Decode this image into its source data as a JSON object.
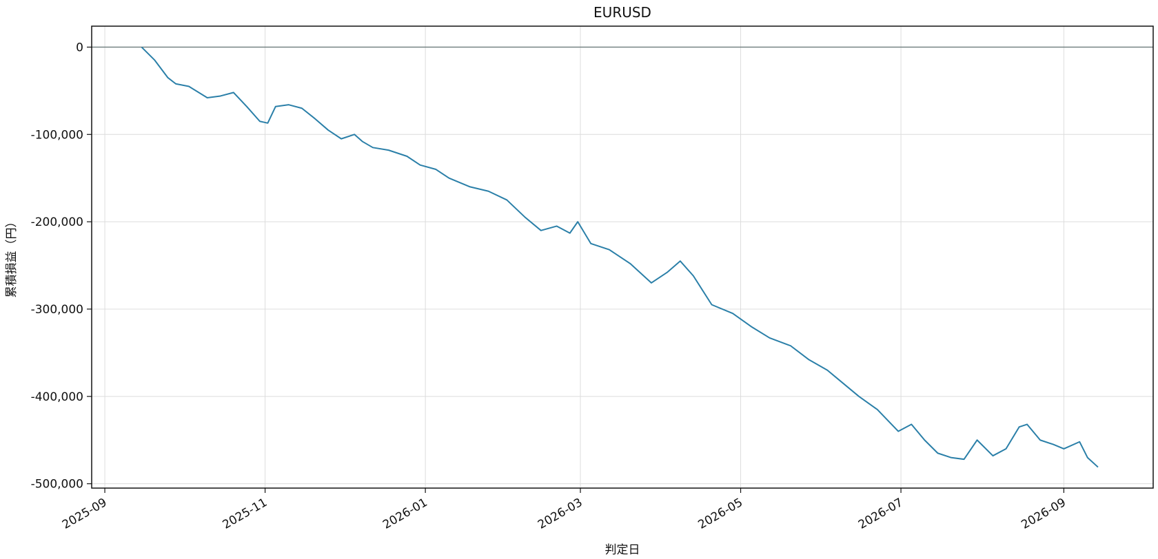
{
  "chart_data": {
    "type": "line",
    "title": "EURUSD",
    "xlabel": "判定日",
    "ylabel": "累積損益（円）",
    "ylim": [
      -505000,
      24000
    ],
    "xlim": [
      "2025-08-27",
      "2026-10-05"
    ],
    "grid": true,
    "legend": "none",
    "zero_line": true,
    "color": "#2a7fa8",
    "x_ticks": [
      "2025-09-01",
      "2025-11-01",
      "2026-01-01",
      "2026-03-01",
      "2026-05-01",
      "2026-07-01",
      "2026-09-01"
    ],
    "x_tick_labels": [
      "2025-09",
      "2025-11",
      "2026-01",
      "2026-03",
      "2026-05",
      "2026-07",
      "2026-09"
    ],
    "y_ticks": [
      0,
      -100000,
      -200000,
      -300000,
      -400000,
      -500000
    ],
    "y_tick_labels": [
      "0",
      "-100,000",
      "-200,000",
      "-300,000",
      "-400,000",
      "-500,000"
    ],
    "series": [
      {
        "name": "",
        "x": [
          "2025-09-15",
          "2025-09-20",
          "2025-09-25",
          "2025-09-28",
          "2025-10-03",
          "2025-10-10",
          "2025-10-15",
          "2025-10-20",
          "2025-10-25",
          "2025-10-30",
          "2025-11-02",
          "2025-11-05",
          "2025-11-10",
          "2025-11-15",
          "2025-11-20",
          "2025-11-25",
          "2025-11-30",
          "2025-12-05",
          "2025-12-08",
          "2025-12-12",
          "2025-12-18",
          "2025-12-25",
          "2025-12-30",
          "2026-01-05",
          "2026-01-10",
          "2026-01-18",
          "2026-01-25",
          "2026-02-01",
          "2026-02-08",
          "2026-02-14",
          "2026-02-20",
          "2026-02-25",
          "2026-02-28",
          "2026-03-05",
          "2026-03-12",
          "2026-03-20",
          "2026-03-28",
          "2026-04-03",
          "2026-04-08",
          "2026-04-13",
          "2026-04-20",
          "2026-04-28",
          "2026-05-05",
          "2026-05-12",
          "2026-05-20",
          "2026-05-27",
          "2026-06-03",
          "2026-06-07",
          "2026-06-15",
          "2026-06-22",
          "2026-06-30",
          "2026-07-05",
          "2026-07-10",
          "2026-07-15",
          "2026-07-20",
          "2026-07-25",
          "2026-07-30",
          "2026-08-05",
          "2026-08-10",
          "2026-08-15",
          "2026-08-18",
          "2026-08-23",
          "2026-08-28",
          "2026-09-01",
          "2026-09-07",
          "2026-09-10",
          "2026-09-14"
        ],
        "y": [
          0,
          -15000,
          -35000,
          -42000,
          -45000,
          -58000,
          -56000,
          -52000,
          -68000,
          -85000,
          -87000,
          -68000,
          -66000,
          -70000,
          -82000,
          -95000,
          -105000,
          -100000,
          -108000,
          -115000,
          -118000,
          -125000,
          -135000,
          -140000,
          -150000,
          -160000,
          -165000,
          -175000,
          -195000,
          -210000,
          -205000,
          -213000,
          -200000,
          -225000,
          -232000,
          -248000,
          -270000,
          -258000,
          -245000,
          -262000,
          -295000,
          -305000,
          -320000,
          -333000,
          -342000,
          -358000,
          -370000,
          -380000,
          -400000,
          -415000,
          -440000,
          -432000,
          -450000,
          -465000,
          -470000,
          -472000,
          -450000,
          -468000,
          -460000,
          -435000,
          -432000,
          -450000,
          -455000,
          -460000,
          -452000,
          -470000,
          -481000
        ]
      }
    ]
  }
}
